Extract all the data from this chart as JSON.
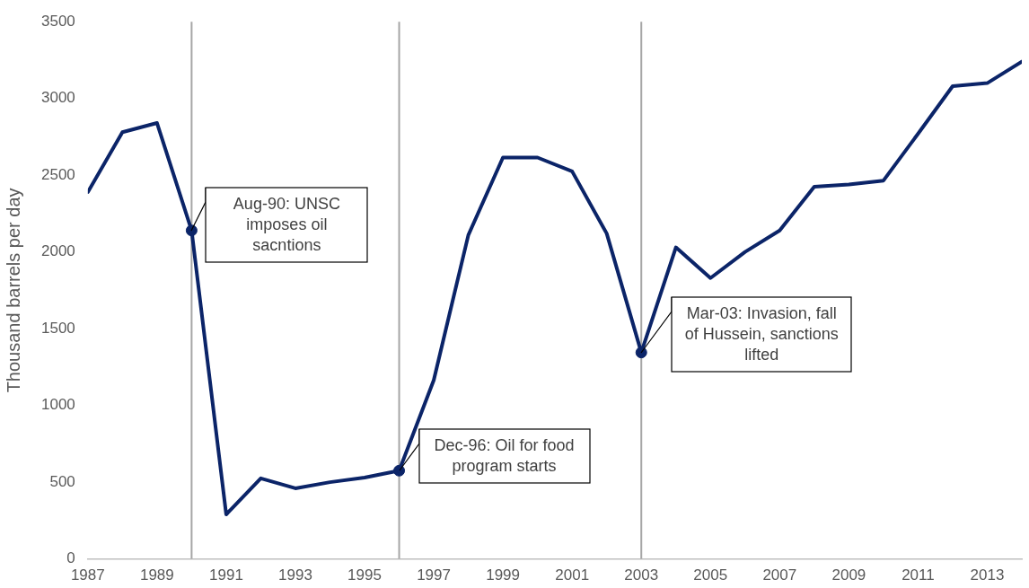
{
  "chart_data": {
    "type": "line",
    "ylabel": "Thousand barrels per day",
    "x": [
      1987,
      1988,
      1989,
      1990,
      1991,
      1992,
      1993,
      1994,
      1995,
      1996,
      1997,
      1998,
      1999,
      2000,
      2001,
      2002,
      2003,
      2004,
      2005,
      2006,
      2007,
      2008,
      2009,
      2010,
      2011,
      2012,
      2013,
      2014
    ],
    "series": [
      {
        "color": "#0b2468",
        "marker": "none",
        "values": [
          2390,
          2780,
          2840,
          2140,
          290,
          525,
          460,
          500,
          530,
          575,
          1165,
          2110,
          2615,
          2615,
          2525,
          2120,
          1345,
          2030,
          1830,
          2000,
          2140,
          2425,
          2440,
          2465,
          2770,
          3080,
          3100,
          3240
        ]
      },
      {
        "type": "scatter",
        "marker": "circle",
        "color": "#0b2468",
        "x": [
          1990,
          1996,
          2003
        ],
        "values": [
          2140,
          575,
          1345
        ]
      }
    ],
    "xlim": [
      1987,
      2014
    ],
    "xticks": [
      1987,
      1989,
      1991,
      1993,
      1995,
      1997,
      1999,
      2001,
      2003,
      2005,
      2007,
      2009,
      2011,
      2013
    ],
    "ylim": [
      0,
      3500
    ],
    "yticks": [
      0,
      500,
      1000,
      1500,
      2000,
      2500,
      3000,
      3500
    ],
    "grid": false,
    "legend": false,
    "ref_lines": [
      {
        "axis": "x",
        "value": 1990,
        "color": "#a6a6a6"
      },
      {
        "axis": "x",
        "value": 1996,
        "color": "#a6a6a6"
      },
      {
        "axis": "x",
        "value": 2003,
        "color": "#a6a6a6"
      }
    ],
    "annotations": [
      {
        "text": "Aug-90: UNSC imposes oil sacntions",
        "x": 1990,
        "y": 2140
      },
      {
        "text": "Dec-96: Oil for food program starts",
        "x": 1996,
        "y": 575
      },
      {
        "text": "Mar-03: Invasion, fall of Hussein, sanctions lifted",
        "x": 2003,
        "y": 1345
      }
    ]
  }
}
